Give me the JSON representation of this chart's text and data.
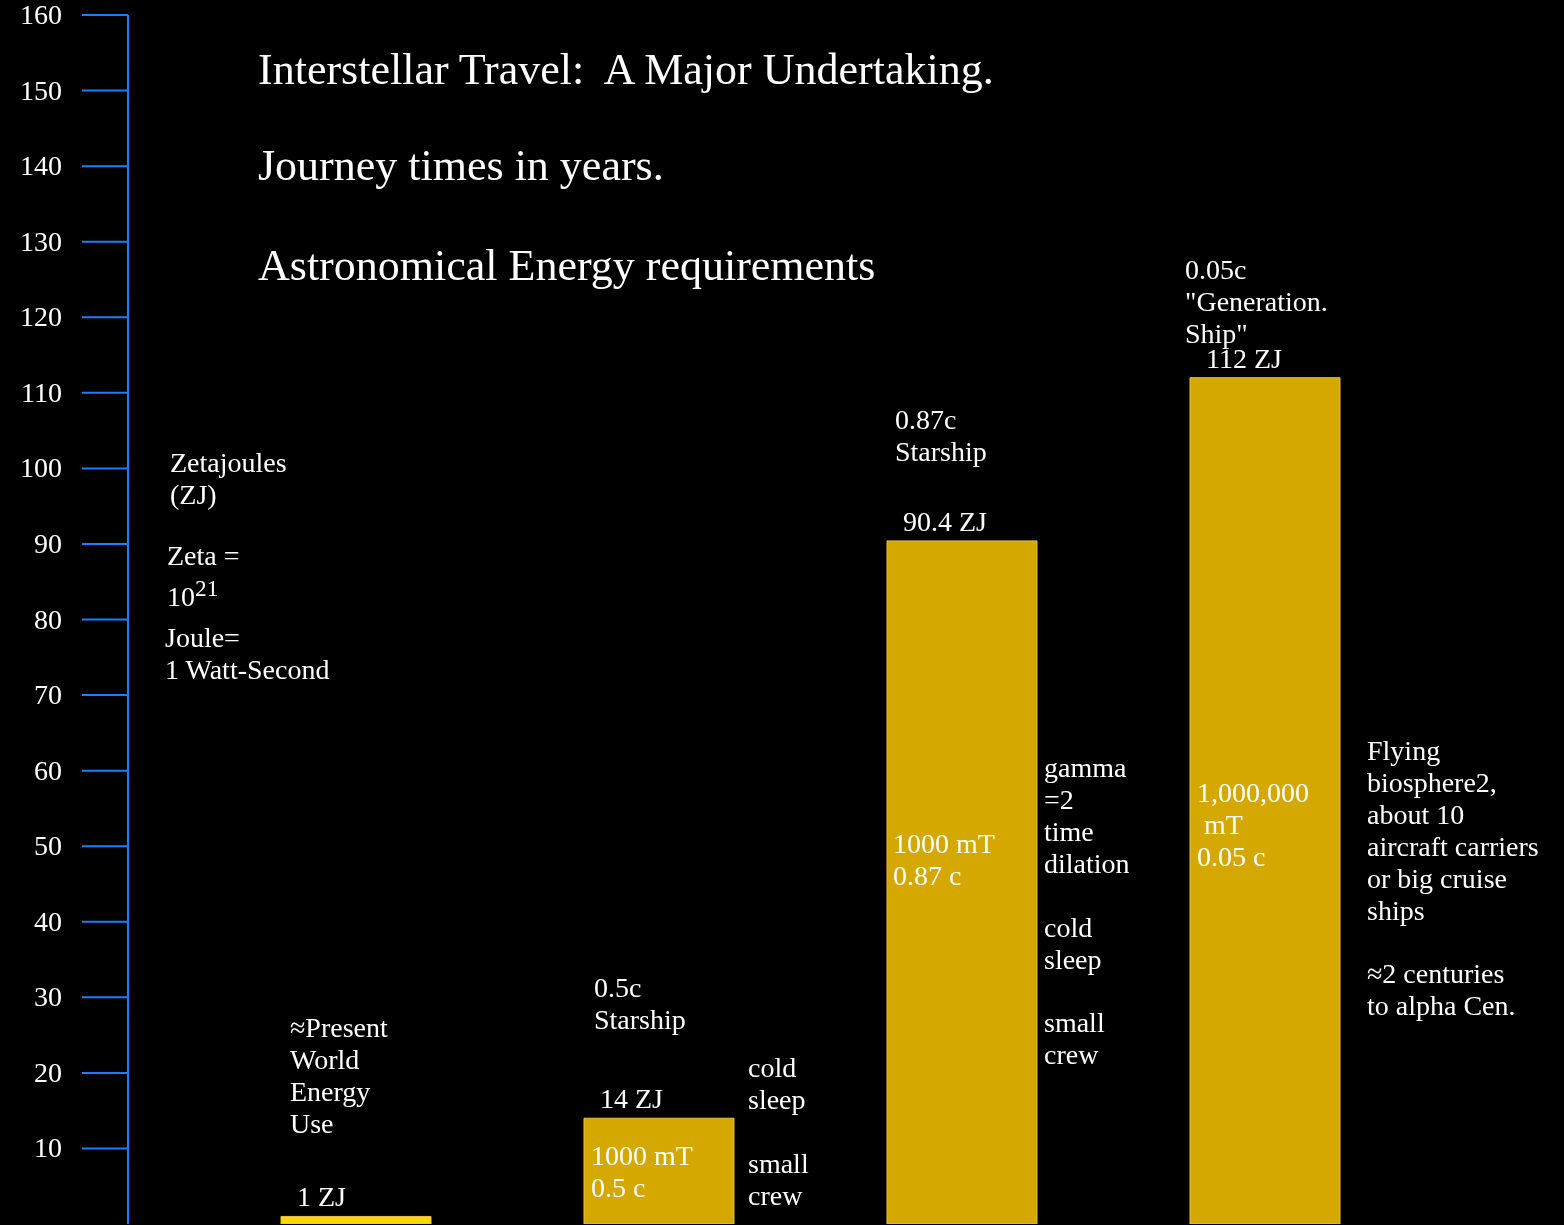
{
  "chart_data": {
    "type": "bar",
    "title": "Interstellar Travel:  A Major Undertaking.",
    "subtitle": "Journey times in years.",
    "ylabel": "Zetajoules\n(ZJ)",
    "categories": [
      null,
      null,
      null,
      null
    ],
    "values": [
      1,
      14,
      90.4,
      112
    ],
    "colors": [
      "#ffd700",
      "#d4a800",
      "#d4a800",
      "#d4a800"
    ],
    "value_labels": [
      "1 ZJ",
      "14 ZJ",
      "90.4 ZJ",
      "112 ZJ"
    ],
    "ylim": [
      0,
      160
    ],
    "yticks": [
      10,
      20,
      30,
      40,
      50,
      60,
      70,
      80,
      90,
      100,
      110,
      120,
      130,
      140,
      150,
      160
    ],
    "grid": false,
    "legend": false,
    "tick_labels": "y",
    "annotations": [
      "Astronomical Energy requirements",
      "Zeta =\n10$^{21}$",
      "Joule=\n1 Watt-Second",
      "≈Present\nWorld\nEnergy\nUse",
      "0.5c\nStarship",
      "1000 mT\n0.5 c",
      "cold\nsleep",
      "small\ncrew",
      "0.87c\nStarship",
      "1000 mT\n0.87 c",
      "gamma\n=2\ntime\ndilation",
      "cold\nsleep",
      "small\ncrew",
      "0.05c\n\"Generation.\nShip\"",
      "1,000,000\n mT\n0.05 c",
      "Flying\nbiosphere2,\nabout 10\naircraft carriers\nor big cruise\nships",
      "≈2 centuries\nto alpha Cen."
    ]
  }
}
